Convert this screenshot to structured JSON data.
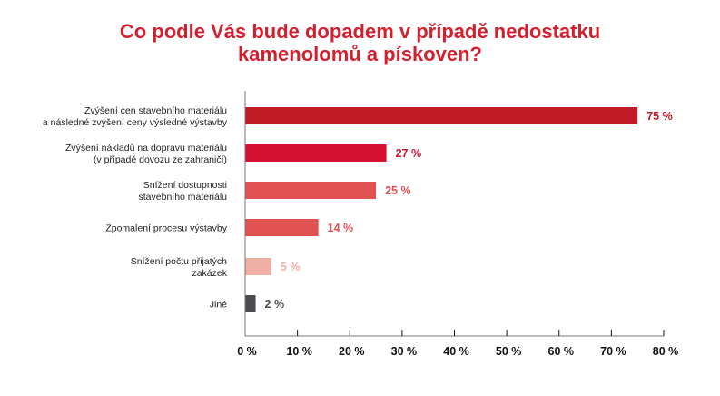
{
  "chart_data": {
    "type": "bar",
    "orientation": "horizontal",
    "title": [
      "Co podle Vás bude dopadem v případě nedostatku",
      "kamenolomů a pískoven?"
    ],
    "categories": [
      [
        "Zvýšení cen stavebního materiálu",
        "a následné zvýšení ceny výsledné výstavby"
      ],
      [
        "Zvýšení nákladů na dopravu materiálu",
        "(v případě dovozu ze zahraničí)"
      ],
      [
        "Snížení dostupnosti",
        "stavebního materiálu"
      ],
      [
        "Zpomalení procesu výstavby"
      ],
      [
        "Snížení počtu přijatých",
        "zakázek"
      ],
      [
        "Jiné"
      ]
    ],
    "values": [
      75,
      27,
      25,
      14,
      5,
      2
    ],
    "value_labels": [
      "75 %",
      "27 %",
      "25 %",
      "14 %",
      "5 %",
      "2 %"
    ],
    "colors": [
      "#c01a26",
      "#d51131",
      "#e05152",
      "#e05152",
      "#f0afa5",
      "#4a4c4f"
    ],
    "label_colors": [
      "#c01a26",
      "#d51131",
      "#e05152",
      "#e05152",
      "#f0afa5",
      "#4a4c4f"
    ],
    "xlim": [
      0,
      80
    ],
    "xticks": [
      0,
      10,
      20,
      30,
      40,
      50,
      60,
      70,
      80
    ],
    "xtick_labels": [
      "0 %",
      "10 %",
      "20 %",
      "30 %",
      "40 %",
      "50 %",
      "60 %",
      "70 %",
      "80 %"
    ],
    "xlabel": "",
    "ylabel": "",
    "grid": false
  }
}
